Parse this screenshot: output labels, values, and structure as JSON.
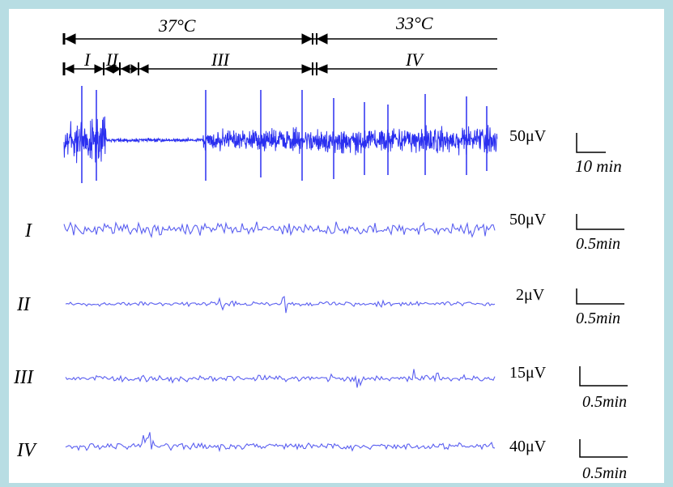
{
  "figure": {
    "temperature_labels": [
      "37°C",
      "33°C"
    ],
    "phase_labels": [
      "I",
      "II",
      "III",
      "IV"
    ],
    "rows": [
      {
        "id": "overview",
        "label": "",
        "scale_amp": "50μV",
        "scale_time": "10 min"
      },
      {
        "id": "I",
        "label": "I",
        "scale_amp": "50μV",
        "scale_time": "0.5min"
      },
      {
        "id": "II",
        "label": "II",
        "scale_amp": "2μV",
        "scale_time": "0.5min"
      },
      {
        "id": "III",
        "label": "III",
        "scale_amp": "15μV",
        "scale_time": "0.5min"
      },
      {
        "id": "IV",
        "label": "IV",
        "scale_amp": "40μV",
        "scale_time": "0.5min"
      }
    ],
    "colors": {
      "trace": "#2a2ff0",
      "trace_light": "#5a5ff0",
      "text": "#000000"
    }
  }
}
